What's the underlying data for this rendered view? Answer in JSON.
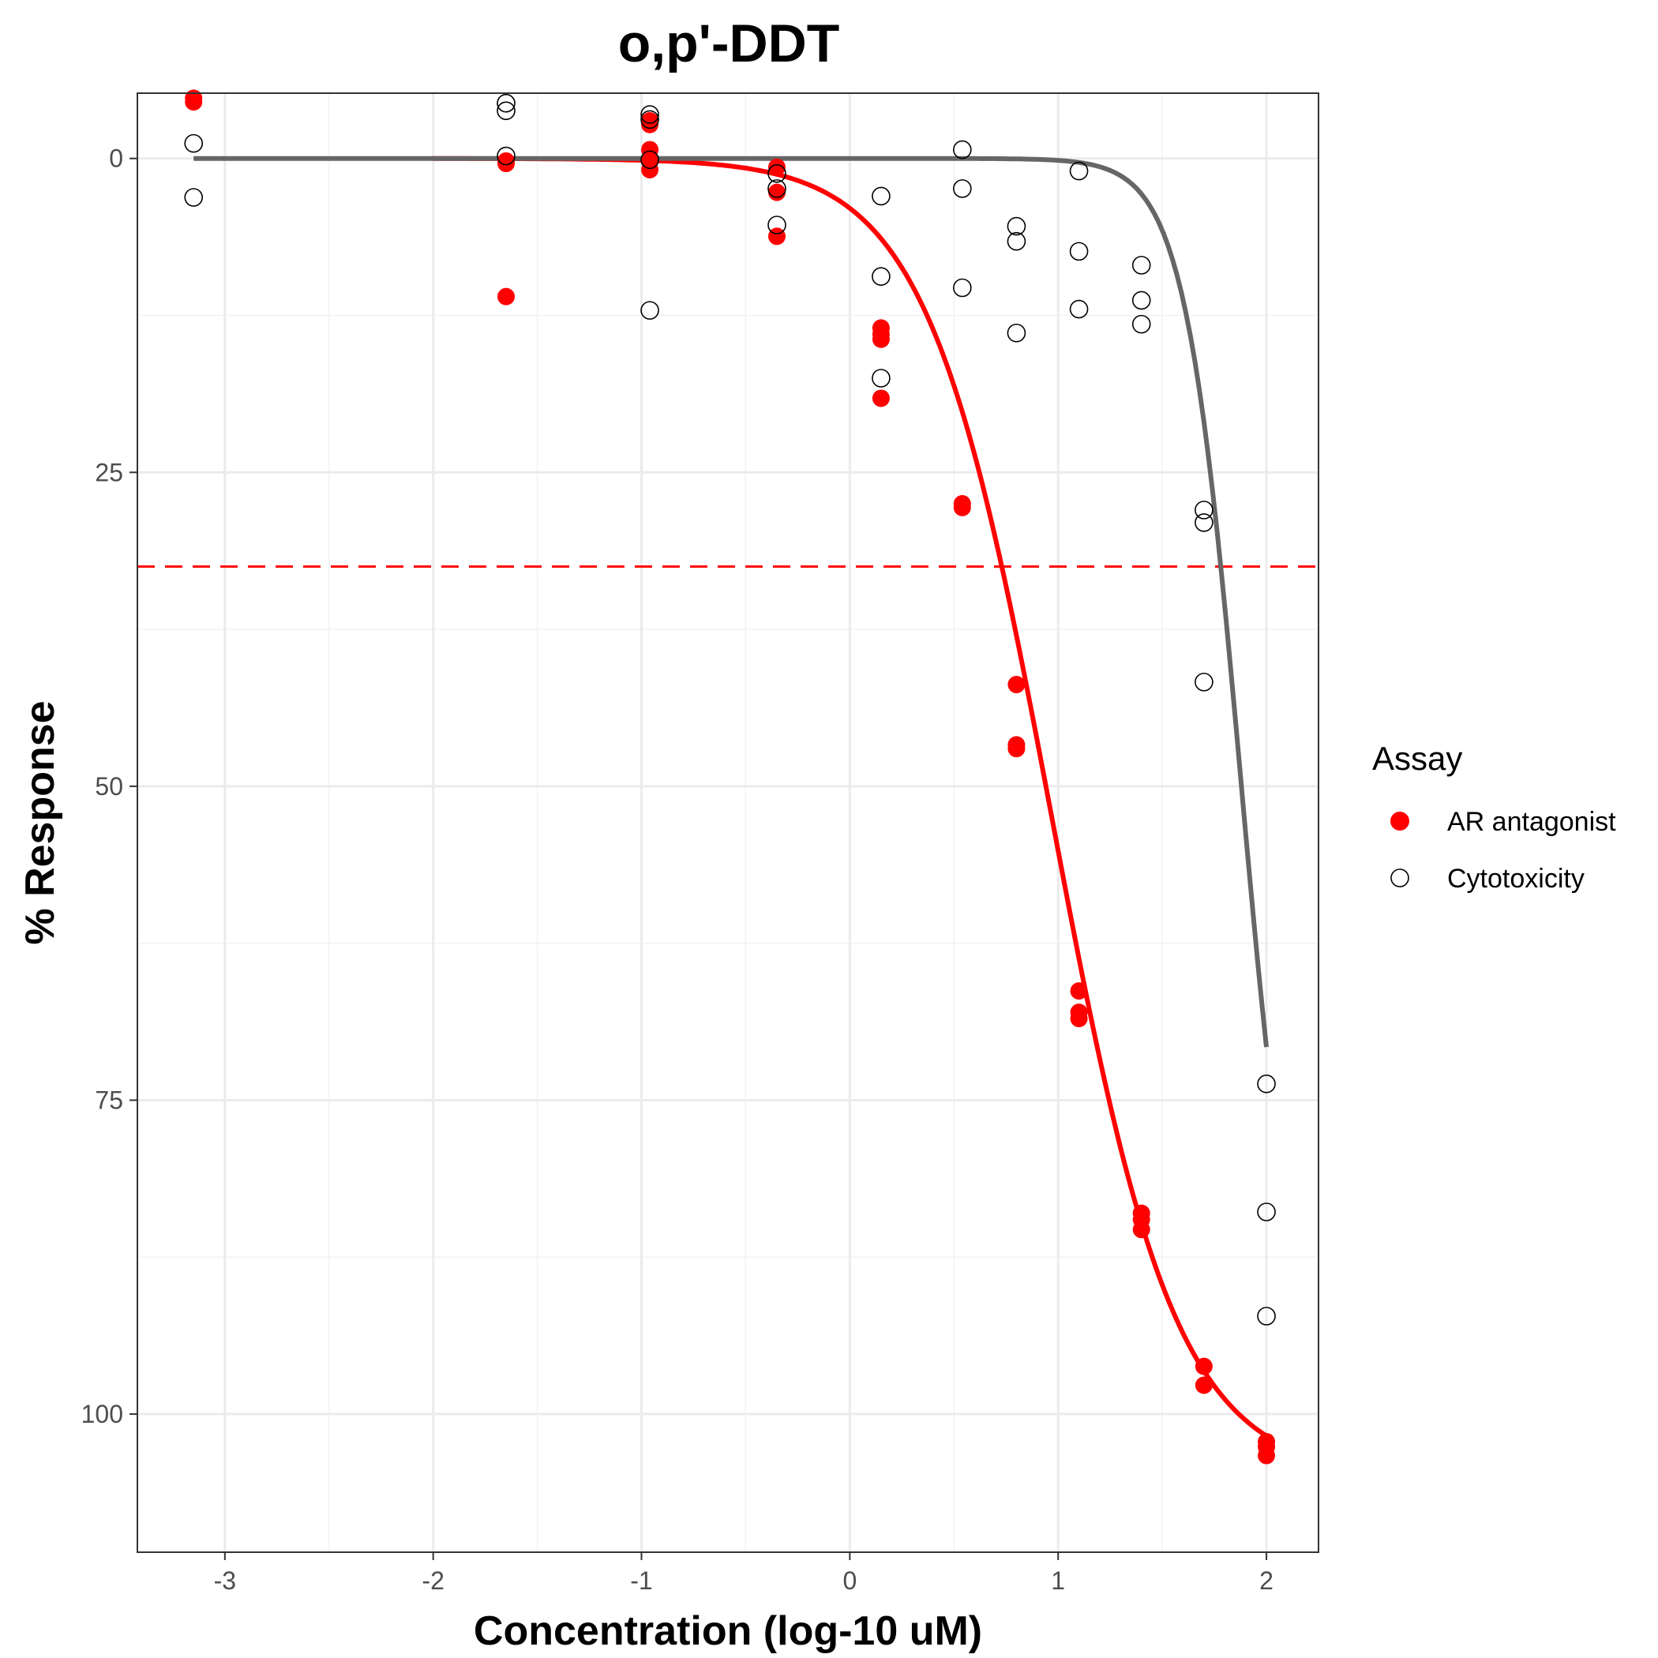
{
  "chart_data": {
    "type": "scatter",
    "title": "o,p'-DDT",
    "xlabel": "Concentration (log-10 uM)",
    "ylabel": "% Response",
    "xlim": [
      -3.42,
      2.25
    ],
    "ylim": [
      -5.2,
      111
    ],
    "y_reversed": true,
    "x_ticks": [
      -3,
      -2,
      -1,
      0,
      1,
      2
    ],
    "x_tick_labels": [
      "-3",
      "-2",
      "-1",
      "0",
      "1",
      "2"
    ],
    "y_ticks": [
      0,
      25,
      50,
      75,
      100
    ],
    "y_tick_labels": [
      "0",
      "25",
      "50",
      "75",
      "100"
    ],
    "grid": true,
    "legend": {
      "title": "Assay",
      "position": "right",
      "entries": [
        "AR antagonist",
        "Cytotoxicity"
      ]
    },
    "reference_line": {
      "y": 32.5,
      "color": "#ff0000",
      "style": "dashed"
    },
    "series": [
      {
        "name": "AR antagonist",
        "color": "#ff0000",
        "marker": "filled-circle",
        "points": [
          [
            -3.15,
            -4.8
          ],
          [
            -3.15,
            -4.5
          ],
          [
            -1.65,
            0.2
          ],
          [
            -1.65,
            0.4
          ],
          [
            -1.65,
            11
          ],
          [
            -0.96,
            -3.0
          ],
          [
            -0.96,
            -2.7
          ],
          [
            -0.96,
            -0.7
          ],
          [
            -0.96,
            0.2
          ],
          [
            -0.96,
            0.9
          ],
          [
            -0.35,
            0.7
          ],
          [
            -0.35,
            2.7
          ],
          [
            -0.35,
            6.2
          ],
          [
            0.15,
            13.5
          ],
          [
            0.15,
            14.0
          ],
          [
            0.15,
            14.4
          ],
          [
            0.15,
            19.1
          ],
          [
            0.54,
            27.5
          ],
          [
            0.54,
            27.8
          ],
          [
            0.8,
            41.9
          ],
          [
            0.8,
            46.7
          ],
          [
            0.8,
            47.0
          ],
          [
            1.1,
            66.3
          ],
          [
            1.1,
            68.0
          ],
          [
            1.1,
            68.5
          ],
          [
            1.4,
            84.0
          ],
          [
            1.4,
            84.5
          ],
          [
            1.4,
            85.3
          ],
          [
            1.7,
            96.2
          ],
          [
            1.7,
            97.7
          ],
          [
            2.0,
            102.2
          ],
          [
            2.0,
            102.6
          ],
          [
            2.0,
            103.3
          ]
        ]
      },
      {
        "name": "Cytotoxicity",
        "color": "#000000",
        "marker": "open-circle",
        "points": [
          [
            -3.15,
            -1.2
          ],
          [
            -3.15,
            3.1
          ],
          [
            -1.65,
            -4.4
          ],
          [
            -1.65,
            -3.8
          ],
          [
            -1.65,
            -0.2
          ],
          [
            -0.96,
            -3.5
          ],
          [
            -0.96,
            -3.1
          ],
          [
            -0.96,
            0.1
          ],
          [
            -0.96,
            12.1
          ],
          [
            -0.35,
            1.2
          ],
          [
            -0.35,
            2.4
          ],
          [
            -0.35,
            5.3
          ],
          [
            0.15,
            3.0
          ],
          [
            0.15,
            9.4
          ],
          [
            0.15,
            17.5
          ],
          [
            0.54,
            -0.7
          ],
          [
            0.54,
            2.4
          ],
          [
            0.54,
            10.3
          ],
          [
            0.8,
            5.4
          ],
          [
            0.8,
            6.6
          ],
          [
            0.8,
            13.9
          ],
          [
            1.1,
            1.0
          ],
          [
            1.1,
            7.4
          ],
          [
            1.1,
            12.0
          ],
          [
            1.4,
            8.5
          ],
          [
            1.4,
            11.3
          ],
          [
            1.4,
            13.2
          ],
          [
            1.7,
            28.0
          ],
          [
            1.7,
            29.0
          ],
          [
            1.7,
            41.7
          ],
          [
            2.0,
            73.7
          ],
          [
            2.0,
            83.9
          ],
          [
            2.0,
            92.2
          ]
        ]
      }
    ],
    "fit_curves": [
      {
        "name": "AR antagonist",
        "color": "#ff0000",
        "x_range": [
          -2.0,
          2.0
        ],
        "top": 0,
        "bottom": 105,
        "ac50_log": 0.97,
        "hill": 1.45
      },
      {
        "name": "Cytotoxicity",
        "color": "#666666",
        "x_range": [
          -3.15,
          2.0
        ],
        "top": 0,
        "bottom": 100,
        "ac50_log": 1.88,
        "hill": 3.2
      }
    ]
  }
}
